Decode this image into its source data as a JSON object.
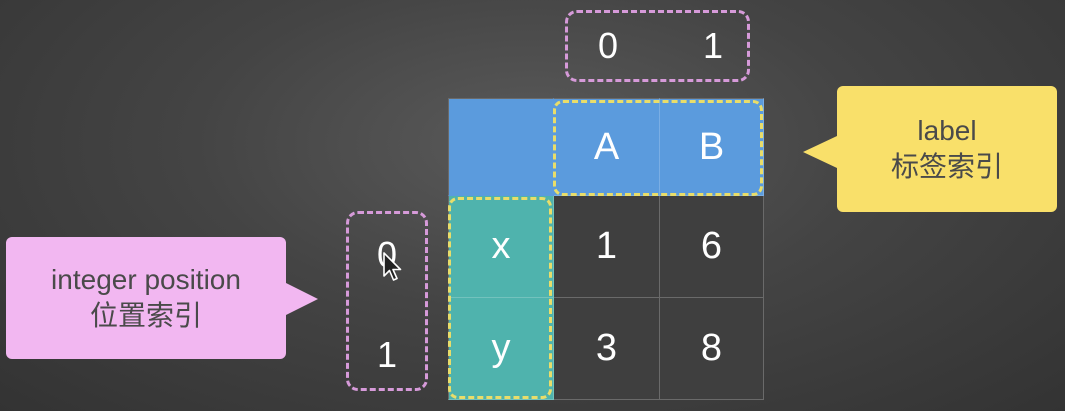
{
  "column_positions": [
    "0",
    "1"
  ],
  "row_positions": [
    "0",
    "1"
  ],
  "table": {
    "corner": "",
    "column_labels": [
      "A",
      "B"
    ],
    "row_labels": [
      "x",
      "y"
    ],
    "rows": [
      [
        "1",
        "6"
      ],
      [
        "3",
        "8"
      ]
    ]
  },
  "callouts": {
    "label": {
      "line1": "label",
      "line2": "标签索引"
    },
    "position": {
      "line1": "integer position",
      "line2": "位置索引"
    }
  },
  "colors": {
    "header_blue": "#5b9bdd",
    "index_teal": "#4fb3ad",
    "label_callout_yellow": "#f9e06a",
    "position_callout_pink": "#f2b7f1",
    "position_dash_pink": "#d69ad9",
    "label_dash_yellow": "#e9dd6a"
  },
  "icons": {
    "cursor": "mouse-pointer-icon"
  }
}
